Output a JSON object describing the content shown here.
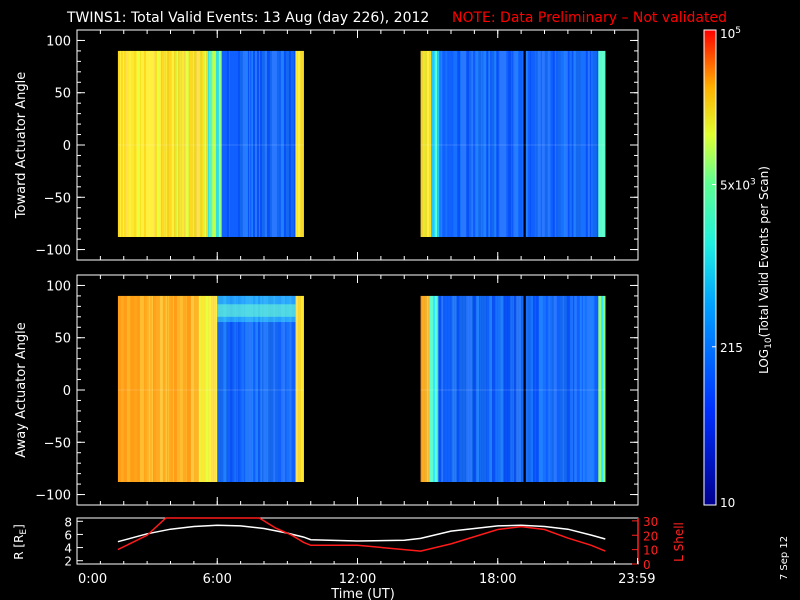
{
  "title": "TWINS1: Total Valid Events: 13 Aug (day 226), 2012",
  "note": "NOTE: Data Preliminary – Not validated",
  "side_date": "7 Sep 12",
  "colors": {
    "note": "#ff0000",
    "lshell": "#ff1a1a",
    "r_line": "#ffffff",
    "background": "#000000",
    "axes": "#ffffff"
  },
  "chart_data": [
    {
      "type": "heatmap",
      "panel": "toward",
      "ylabel": "Toward Actuator Angle",
      "ylim": [
        -110,
        110
      ],
      "yticks": [
        100,
        50,
        0,
        -50,
        -100
      ],
      "xlim": [
        0,
        24
      ],
      "angle_range": [
        -88,
        90
      ],
      "blocks": [
        {
          "t_start": 1.75,
          "t_end": 9.7,
          "segments": [
            {
              "t": [
                1.75,
                3.6
              ],
              "level": "high"
            },
            {
              "t": [
                3.6,
                4.8
              ],
              "level": "high"
            },
            {
              "t": [
                4.8,
                5.6
              ],
              "level": "high"
            },
            {
              "t": [
                5.6,
                6.2
              ],
              "level": "mid-high"
            },
            {
              "t": [
                6.2,
                9.35
              ],
              "level": "low"
            },
            {
              "t": [
                9.35,
                9.7
              ],
              "level": "high"
            }
          ]
        },
        {
          "t_start": 14.7,
          "t_end": 22.6,
          "segments": [
            {
              "t": [
                14.7,
                15.15
              ],
              "level": "high"
            },
            {
              "t": [
                15.15,
                15.5
              ],
              "level": "mid"
            },
            {
              "t": [
                15.5,
                19.1
              ],
              "level": "low"
            },
            {
              "t": [
                19.1,
                19.2
              ],
              "level": "gap"
            },
            {
              "t": [
                19.2,
                22.3
              ],
              "level": "low"
            },
            {
              "t": [
                22.3,
                22.6
              ],
              "level": "mid"
            }
          ]
        }
      ]
    },
    {
      "type": "heatmap",
      "panel": "away",
      "ylabel": "Away Actuator Angle",
      "ylim": [
        -110,
        110
      ],
      "yticks": [
        100,
        50,
        0,
        -50,
        -100
      ],
      "xlim": [
        0,
        24
      ],
      "angle_range": [
        -88,
        90
      ],
      "blocks": [
        {
          "t_start": 1.75,
          "t_end": 9.7,
          "segments": [
            {
              "t": [
                1.75,
                5.2
              ],
              "level": "very-high"
            },
            {
              "t": [
                5.2,
                6.0
              ],
              "level": "high"
            },
            {
              "t": [
                6.0,
                9.35
              ],
              "level": "low"
            },
            {
              "t": [
                9.35,
                9.7
              ],
              "level": "high"
            }
          ],
          "feature": "band near +75 deg from 6:00 to 9:30"
        },
        {
          "t_start": 14.7,
          "t_end": 22.6,
          "segments": [
            {
              "t": [
                14.7,
                15.1
              ],
              "level": "very-high"
            },
            {
              "t": [
                15.1,
                15.45
              ],
              "level": "mid"
            },
            {
              "t": [
                15.45,
                19.1
              ],
              "level": "low"
            },
            {
              "t": [
                19.1,
                19.2
              ],
              "level": "gap"
            },
            {
              "t": [
                19.2,
                22.3
              ],
              "level": "low"
            },
            {
              "t": [
                22.3,
                22.6
              ],
              "level": "mid"
            }
          ]
        }
      ]
    },
    {
      "type": "line",
      "panel": "orbit",
      "xlabel": "Time (UT)",
      "xticks": [
        "0:00",
        "6:00",
        "12:00",
        "18:00",
        "23:59"
      ],
      "xtick_values": [
        0,
        6,
        12,
        18,
        23.98
      ],
      "left_axis": {
        "label": "R [R",
        "label_sub": "E",
        "label_end": "]",
        "ylim": [
          1.5,
          8.5
        ],
        "yticks": [
          8,
          6,
          4,
          2
        ]
      },
      "right_axis": {
        "label": "L Shell",
        "ylim": [
          0,
          32
        ],
        "yticks": [
          30,
          20,
          10,
          0
        ]
      },
      "series": [
        {
          "name": "R",
          "axis": "left",
          "x": [
            1.75,
            3,
            4,
            5,
            6,
            7,
            8,
            9,
            9.7,
            10,
            12,
            14,
            14.7,
            16,
            18,
            19,
            20,
            21,
            22,
            22.6
          ],
          "y": [
            4.9,
            6.1,
            6.8,
            7.2,
            7.4,
            7.3,
            6.9,
            6.2,
            5.6,
            5.2,
            5.0,
            5.1,
            5.4,
            6.5,
            7.3,
            7.4,
            7.2,
            6.8,
            5.9,
            5.3
          ]
        },
        {
          "name": "L Shell",
          "axis": "right",
          "x": [
            1.75,
            3,
            3.8,
            7.8,
            8.5,
            9.2,
            9.7,
            10,
            12,
            14,
            14.7,
            16,
            18,
            19,
            20,
            21,
            22,
            22.6
          ],
          "y": [
            10,
            20,
            32,
            32,
            25,
            20,
            15,
            13,
            13,
            10,
            9,
            14,
            24,
            26,
            24,
            18,
            13,
            9
          ]
        }
      ]
    },
    {
      "type": "heatmap",
      "panel": "colorbar",
      "label": "LOG",
      "label_sub": "10",
      "label_end": "(Total Valid Events per Scan)",
      "scale": "log",
      "range": [
        10,
        100000
      ],
      "ticks": [
        {
          "label": "10",
          "value": 10
        },
        {
          "label": "215",
          "value": 215
        },
        {
          "label": "5x10",
          "sup": "3",
          "value": 5000
        },
        {
          "label": "10",
          "sup": "5",
          "value": 100000
        }
      ]
    }
  ]
}
